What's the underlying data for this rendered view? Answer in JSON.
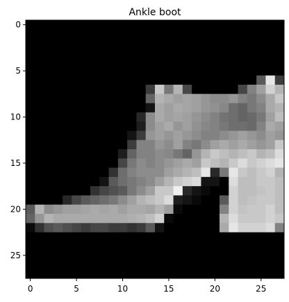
{
  "chart_data": {
    "type": "heatmap",
    "title": "Ankle boot",
    "xlabel": "",
    "ylabel": "",
    "colormap": "gray",
    "value_range": [
      0,
      255
    ],
    "rows": 28,
    "cols": 28,
    "xlim": [
      -0.5,
      27.5
    ],
    "ylim": [
      27.5,
      -0.5
    ],
    "xticks": [
      0,
      5,
      10,
      15,
      20,
      25
    ],
    "yticks": [
      0,
      5,
      10,
      15,
      20,
      25
    ],
    "xtick_labels": [
      "0",
      "5",
      "10",
      "15",
      "20",
      "25"
    ],
    "ytick_labels": [
      "0",
      "5",
      "10",
      "15",
      "20",
      "25"
    ],
    "grid": false,
    "legend": "none",
    "values": [
      [
        0,
        0,
        0,
        0,
        0,
        0,
        0,
        0,
        0,
        0,
        0,
        0,
        0,
        0,
        0,
        0,
        0,
        0,
        0,
        0,
        0,
        0,
        0,
        0,
        0,
        0,
        0,
        0
      ],
      [
        0,
        0,
        0,
        0,
        0,
        0,
        0,
        0,
        0,
        0,
        0,
        0,
        0,
        0,
        0,
        0,
        0,
        0,
        0,
        0,
        0,
        0,
        0,
        0,
        0,
        0,
        0,
        0
      ],
      [
        0,
        0,
        0,
        0,
        0,
        0,
        0,
        0,
        0,
        0,
        0,
        0,
        0,
        0,
        0,
        0,
        0,
        0,
        0,
        0,
        0,
        0,
        0,
        0,
        0,
        0,
        0,
        0
      ],
      [
        0,
        0,
        0,
        0,
        0,
        0,
        0,
        0,
        0,
        0,
        0,
        0,
        0,
        0,
        0,
        0,
        0,
        0,
        0,
        0,
        0,
        0,
        0,
        0,
        0,
        0,
        0,
        0
      ],
      [
        0,
        0,
        0,
        0,
        0,
        0,
        0,
        0,
        0,
        0,
        0,
        0,
        0,
        0,
        0,
        0,
        0,
        0,
        0,
        0,
        0,
        0,
        0,
        0,
        0,
        0,
        0,
        0
      ],
      [
        0,
        0,
        0,
        0,
        0,
        0,
        0,
        0,
        0,
        0,
        0,
        0,
        0,
        0,
        0,
        0,
        0,
        0,
        0,
        0,
        0,
        0,
        0,
        0,
        0,
        0,
        0,
        0
      ],
      [
        0,
        0,
        0,
        0,
        0,
        0,
        0,
        0,
        0,
        0,
        0,
        0,
        0,
        0,
        0,
        0,
        0,
        0,
        0,
        0,
        0,
        0,
        0,
        0,
        0,
        90,
        230,
        60
      ],
      [
        0,
        0,
        0,
        0,
        0,
        0,
        0,
        0,
        0,
        0,
        0,
        0,
        0,
        60,
        200,
        120,
        180,
        70,
        0,
        0,
        0,
        0,
        0,
        70,
        130,
        160,
        210,
        180
      ],
      [
        0,
        0,
        0,
        0,
        0,
        0,
        0,
        0,
        0,
        0,
        0,
        0,
        0,
        100,
        180,
        170,
        160,
        165,
        160,
        150,
        140,
        140,
        150,
        130,
        120,
        140,
        170,
        200
      ],
      [
        0,
        0,
        0,
        0,
        0,
        0,
        0,
        0,
        0,
        0,
        0,
        0,
        0,
        20,
        170,
        160,
        170,
        165,
        160,
        150,
        145,
        135,
        110,
        100,
        120,
        130,
        170,
        180
      ],
      [
        0,
        0,
        0,
        0,
        0,
        0,
        0,
        0,
        0,
        0,
        0,
        0,
        40,
        140,
        170,
        160,
        165,
        160,
        150,
        140,
        130,
        115,
        110,
        100,
        105,
        120,
        160,
        190
      ],
      [
        0,
        0,
        0,
        0,
        0,
        0,
        0,
        0,
        0,
        0,
        0,
        0,
        30,
        140,
        160,
        170,
        150,
        160,
        145,
        135,
        130,
        120,
        110,
        110,
        105,
        130,
        170,
        160
      ],
      [
        0,
        0,
        0,
        0,
        0,
        0,
        0,
        0,
        0,
        0,
        0,
        20,
        60,
        150,
        160,
        150,
        160,
        150,
        140,
        130,
        130,
        140,
        150,
        160,
        150,
        140,
        160,
        150
      ],
      [
        0,
        0,
        0,
        0,
        0,
        0,
        0,
        0,
        0,
        0,
        0,
        60,
        130,
        130,
        150,
        140,
        160,
        130,
        120,
        140,
        160,
        170,
        160,
        170,
        160,
        150,
        160,
        200
      ],
      [
        0,
        0,
        0,
        0,
        0,
        0,
        0,
        0,
        0,
        0,
        30,
        100,
        130,
        130,
        140,
        135,
        120,
        100,
        150,
        180,
        200,
        190,
        180,
        190,
        200,
        180,
        190,
        220
      ],
      [
        0,
        0,
        0,
        0,
        0,
        0,
        0,
        0,
        0,
        0,
        70,
        120,
        140,
        130,
        140,
        150,
        160,
        170,
        160,
        200,
        190,
        180,
        200,
        220,
        200,
        210,
        220,
        230
      ],
      [
        0,
        0,
        0,
        0,
        0,
        0,
        0,
        0,
        0,
        50,
        110,
        130,
        140,
        140,
        140,
        160,
        170,
        180,
        190,
        230,
        40,
        120,
        230,
        200,
        190,
        200,
        210,
        180
      ],
      [
        0,
        0,
        0,
        0,
        0,
        0,
        0,
        0,
        20,
        90,
        110,
        120,
        130,
        140,
        160,
        180,
        200,
        210,
        220,
        20,
        20,
        0,
        220,
        190,
        190,
        200,
        200,
        190
      ],
      [
        0,
        0,
        0,
        0,
        0,
        0,
        0,
        50,
        70,
        80,
        90,
        120,
        140,
        160,
        200,
        200,
        240,
        40,
        20,
        10,
        0,
        0,
        210,
        190,
        190,
        195,
        200,
        190
      ],
      [
        0,
        0,
        0,
        0,
        40,
        70,
        90,
        100,
        110,
        120,
        140,
        160,
        180,
        190,
        200,
        220,
        30,
        20,
        10,
        0,
        0,
        90,
        210,
        190,
        195,
        200,
        200,
        190
      ],
      [
        90,
        180,
        140,
        150,
        160,
        160,
        165,
        170,
        165,
        170,
        160,
        170,
        170,
        165,
        180,
        160,
        10,
        0,
        0,
        0,
        0,
        130,
        210,
        195,
        200,
        200,
        210,
        190
      ],
      [
        100,
        150,
        180,
        170,
        170,
        170,
        170,
        170,
        170,
        170,
        170,
        175,
        180,
        190,
        210,
        10,
        0,
        0,
        0,
        0,
        0,
        180,
        220,
        200,
        200,
        200,
        210,
        200
      ],
      [
        10,
        50,
        80,
        90,
        80,
        70,
        60,
        70,
        70,
        60,
        60,
        50,
        60,
        90,
        20,
        0,
        0,
        0,
        0,
        0,
        0,
        170,
        230,
        210,
        210,
        210,
        220,
        130
      ],
      [
        0,
        0,
        0,
        0,
        0,
        0,
        0,
        0,
        0,
        0,
        0,
        0,
        0,
        0,
        0,
        0,
        0,
        0,
        0,
        0,
        0,
        0,
        0,
        0,
        0,
        0,
        0,
        0
      ],
      [
        0,
        0,
        0,
        0,
        0,
        0,
        0,
        0,
        0,
        0,
        0,
        0,
        0,
        0,
        0,
        0,
        0,
        0,
        0,
        0,
        0,
        0,
        0,
        0,
        0,
        0,
        0,
        0
      ],
      [
        0,
        0,
        0,
        0,
        0,
        0,
        0,
        0,
        0,
        0,
        0,
        0,
        0,
        0,
        0,
        0,
        0,
        0,
        0,
        0,
        0,
        0,
        0,
        0,
        0,
        0,
        0,
        0
      ],
      [
        0,
        0,
        0,
        0,
        0,
        0,
        0,
        0,
        0,
        0,
        0,
        0,
        0,
        0,
        0,
        0,
        0,
        0,
        0,
        0,
        0,
        0,
        0,
        0,
        0,
        0,
        0,
        0
      ],
      [
        0,
        0,
        0,
        0,
        0,
        0,
        0,
        0,
        0,
        0,
        0,
        0,
        0,
        0,
        0,
        0,
        0,
        0,
        0,
        0,
        0,
        0,
        0,
        0,
        0,
        0,
        0,
        0
      ]
    ]
  }
}
